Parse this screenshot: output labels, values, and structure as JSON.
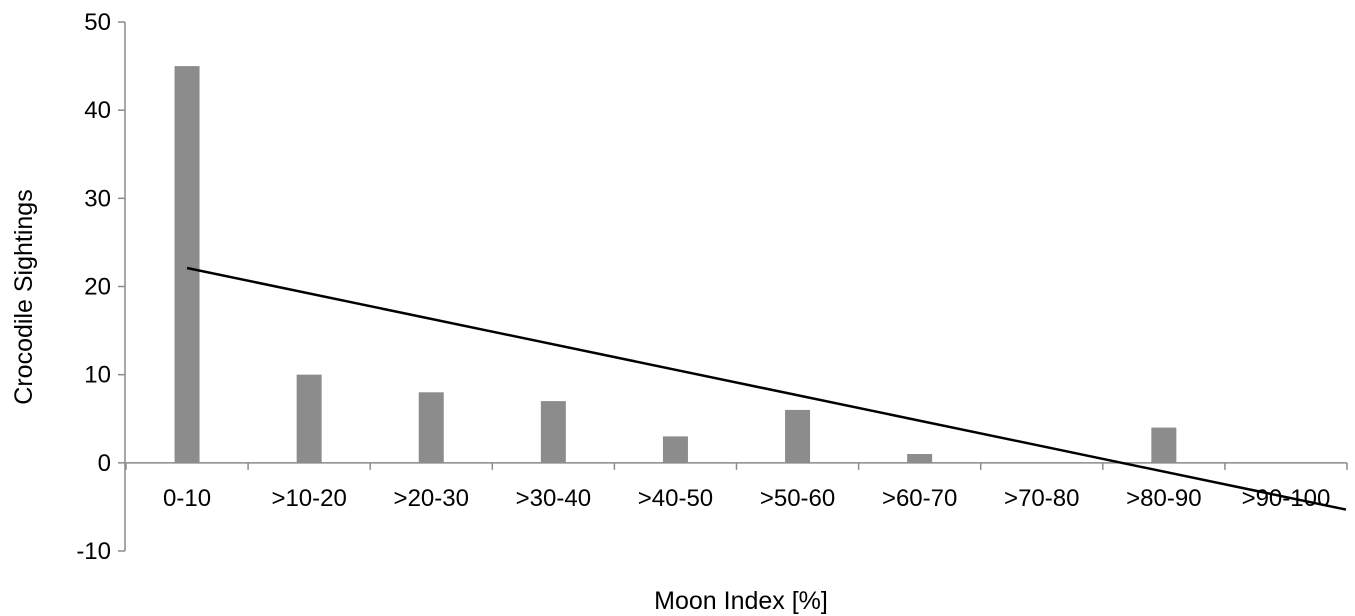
{
  "chart_data": {
    "type": "bar",
    "xlabel": "Moon Index [%]",
    "ylabel": "Crocodile Sightings",
    "categories": [
      ">0-10",
      ">10-20",
      ">20-30",
      ">30-40",
      ">40-50",
      ">50-60",
      ">60-70",
      ">70-80",
      ">80-90",
      ">90-100"
    ],
    "category_labels": [
      "0-10",
      ">10-20",
      ">20-30",
      ">30-40",
      ">40-50",
      ">50-60",
      ">60-70",
      ">70-80",
      ">80-90",
      ">90-100"
    ],
    "values": [
      45,
      10,
      8,
      7,
      3,
      6,
      1,
      0,
      4,
      0
    ],
    "ylim": [
      -10,
      50
    ],
    "yticks": [
      -10,
      0,
      10,
      20,
      30,
      40,
      50
    ],
    "grid": false,
    "bar_color": "#8c8c8c",
    "trendline": {
      "type": "linear",
      "start": {
        "category_index": 0,
        "y": 22.1
      },
      "end": {
        "category_index": 9,
        "y": -5.3
      }
    }
  }
}
